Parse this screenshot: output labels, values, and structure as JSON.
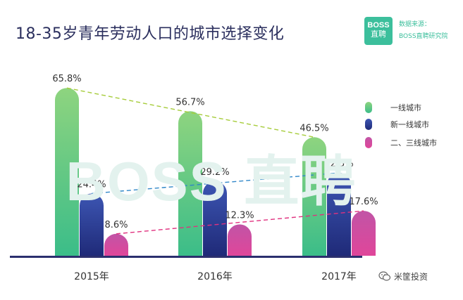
{
  "title": "18-35岁青年劳动人口的城市选择变化",
  "logo": {
    "line1": "BOSS",
    "line2": "直聘"
  },
  "source": {
    "label": "数据来源：",
    "name": "BOSS直聘研究院"
  },
  "watermark": "BOSS 直聘",
  "wechat": {
    "text": "米筐投资"
  },
  "chart_data": {
    "type": "bar",
    "title": "18-35岁青年劳动人口的城市选择变化",
    "categories": [
      "2015年",
      "2016年",
      "2017年"
    ],
    "series": [
      {
        "name": "一线城市",
        "values": [
          65.8,
          56.7,
          46.5
        ],
        "labels": [
          "65.8%",
          "56.7%",
          "46.5%"
        ],
        "color_top": "#8ed47f",
        "color_bottom": "#3bbd89",
        "trend_color": "#a6cc3a"
      },
      {
        "name": "新一线城市",
        "values": [
          24.4,
          29.2,
          32.5
        ],
        "labels": [
          "24.4%",
          "29.2%",
          "32.5%"
        ],
        "color_top": "#3d56b3",
        "color_bottom": "#1f2a78",
        "trend_color": "#2f86c8"
      },
      {
        "name": "二、三线城市",
        "values": [
          8.6,
          12.3,
          17.6
        ],
        "labels": [
          "8.6%",
          "12.3%",
          "17.6%"
        ],
        "color_top": "#c154a6",
        "color_bottom": "#e0469a",
        "trend_color": "#e0317f"
      }
    ],
    "ylim": [
      0,
      70
    ],
    "grid": false,
    "legend": "right",
    "trend_lines": true
  }
}
